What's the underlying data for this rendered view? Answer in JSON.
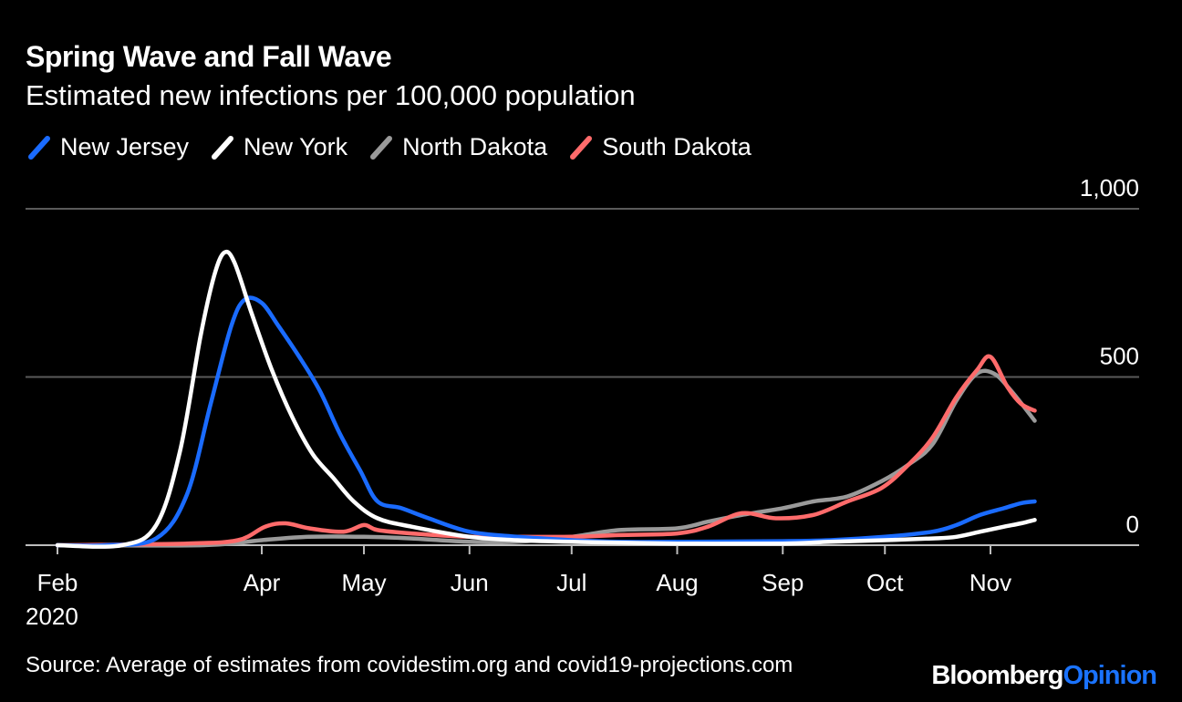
{
  "chart_data": {
    "type": "line",
    "title": "Spring Wave and Fall Wave",
    "subtitle": "Estimated new infections per 100,000 population",
    "ylim": [
      0,
      1000
    ],
    "yticks": [
      0,
      500,
      1000
    ],
    "ytick_labels": [
      "0",
      "500",
      "1,000"
    ],
    "xticks": [
      {
        "date": "2020-02-01",
        "label": "Feb"
      },
      {
        "date": "2020-04-01",
        "label": "Apr"
      },
      {
        "date": "2020-05-01",
        "label": "May"
      },
      {
        "date": "2020-06-01",
        "label": "Jun"
      },
      {
        "date": "2020-07-01",
        "label": "Jul"
      },
      {
        "date": "2020-08-01",
        "label": "Aug"
      },
      {
        "date": "2020-09-01",
        "label": "Sep"
      },
      {
        "date": "2020-10-01",
        "label": "Oct"
      },
      {
        "date": "2020-11-01",
        "label": "Nov"
      }
    ],
    "year_label": "2020",
    "grid": true,
    "legend_position": "top-left",
    "series": [
      {
        "name": "New Jersey",
        "color": "#1a6bff",
        "points": [
          [
            "2020-02-01",
            0
          ],
          [
            "2020-02-15",
            0
          ],
          [
            "2020-03-01",
            20
          ],
          [
            "2020-03-10",
            150
          ],
          [
            "2020-03-17",
            420
          ],
          [
            "2020-03-23",
            650
          ],
          [
            "2020-03-27",
            730
          ],
          [
            "2020-04-01",
            720
          ],
          [
            "2020-04-06",
            650
          ],
          [
            "2020-04-12",
            560
          ],
          [
            "2020-04-18",
            460
          ],
          [
            "2020-04-24",
            330
          ],
          [
            "2020-04-30",
            220
          ],
          [
            "2020-05-05",
            130
          ],
          [
            "2020-05-12",
            110
          ],
          [
            "2020-05-20",
            80
          ],
          [
            "2020-06-01",
            40
          ],
          [
            "2020-06-15",
            25
          ],
          [
            "2020-07-01",
            15
          ],
          [
            "2020-07-15",
            10
          ],
          [
            "2020-08-01",
            10
          ],
          [
            "2020-09-01",
            12
          ],
          [
            "2020-09-15",
            15
          ],
          [
            "2020-10-01",
            25
          ],
          [
            "2020-10-15",
            40
          ],
          [
            "2020-10-22",
            60
          ],
          [
            "2020-10-29",
            90
          ],
          [
            "2020-11-05",
            110
          ],
          [
            "2020-11-10",
            125
          ],
          [
            "2020-11-14",
            130
          ]
        ]
      },
      {
        "name": "New York",
        "color": "#ffffff",
        "points": [
          [
            "2020-02-01",
            0
          ],
          [
            "2020-02-20",
            0
          ],
          [
            "2020-03-01",
            60
          ],
          [
            "2020-03-08",
            280
          ],
          [
            "2020-03-14",
            620
          ],
          [
            "2020-03-18",
            800
          ],
          [
            "2020-03-21",
            870
          ],
          [
            "2020-03-24",
            840
          ],
          [
            "2020-03-29",
            690
          ],
          [
            "2020-04-04",
            520
          ],
          [
            "2020-04-10",
            380
          ],
          [
            "2020-04-16",
            270
          ],
          [
            "2020-04-22",
            200
          ],
          [
            "2020-04-28",
            130
          ],
          [
            "2020-05-05",
            80
          ],
          [
            "2020-05-15",
            55
          ],
          [
            "2020-06-01",
            25
          ],
          [
            "2020-06-15",
            15
          ],
          [
            "2020-07-01",
            10
          ],
          [
            "2020-08-01",
            5
          ],
          [
            "2020-09-01",
            5
          ],
          [
            "2020-09-15",
            10
          ],
          [
            "2020-10-01",
            15
          ],
          [
            "2020-10-15",
            20
          ],
          [
            "2020-10-22",
            25
          ],
          [
            "2020-10-29",
            40
          ],
          [
            "2020-11-05",
            55
          ],
          [
            "2020-11-10",
            65
          ],
          [
            "2020-11-14",
            75
          ]
        ]
      },
      {
        "name": "North Dakota",
        "color": "#9a9a9a",
        "points": [
          [
            "2020-02-01",
            0
          ],
          [
            "2020-03-15",
            0
          ],
          [
            "2020-04-01",
            15
          ],
          [
            "2020-04-15",
            25
          ],
          [
            "2020-05-01",
            25
          ],
          [
            "2020-05-15",
            20
          ],
          [
            "2020-06-01",
            10
          ],
          [
            "2020-06-15",
            10
          ],
          [
            "2020-07-01",
            25
          ],
          [
            "2020-07-15",
            45
          ],
          [
            "2020-08-01",
            50
          ],
          [
            "2020-08-10",
            70
          ],
          [
            "2020-08-20",
            90
          ],
          [
            "2020-09-01",
            110
          ],
          [
            "2020-09-10",
            130
          ],
          [
            "2020-09-20",
            145
          ],
          [
            "2020-09-30",
            190
          ],
          [
            "2020-10-08",
            240
          ],
          [
            "2020-10-15",
            300
          ],
          [
            "2020-10-22",
            430
          ],
          [
            "2020-10-28",
            510
          ],
          [
            "2020-11-02",
            510
          ],
          [
            "2020-11-07",
            460
          ],
          [
            "2020-11-14",
            370
          ]
        ]
      },
      {
        "name": "South Dakota",
        "color": "#ff6b6b",
        "points": [
          [
            "2020-02-01",
            0
          ],
          [
            "2020-03-10",
            5
          ],
          [
            "2020-03-25",
            15
          ],
          [
            "2020-04-02",
            55
          ],
          [
            "2020-04-08",
            65
          ],
          [
            "2020-04-15",
            50
          ],
          [
            "2020-04-25",
            40
          ],
          [
            "2020-05-01",
            60
          ],
          [
            "2020-05-05",
            45
          ],
          [
            "2020-05-15",
            35
          ],
          [
            "2020-06-01",
            25
          ],
          [
            "2020-06-15",
            25
          ],
          [
            "2020-07-01",
            25
          ],
          [
            "2020-07-15",
            30
          ],
          [
            "2020-08-01",
            35
          ],
          [
            "2020-08-10",
            55
          ],
          [
            "2020-08-20",
            95
          ],
          [
            "2020-08-30",
            80
          ],
          [
            "2020-09-10",
            90
          ],
          [
            "2020-09-20",
            130
          ],
          [
            "2020-09-30",
            170
          ],
          [
            "2020-10-08",
            240
          ],
          [
            "2020-10-15",
            320
          ],
          [
            "2020-10-22",
            440
          ],
          [
            "2020-10-28",
            520
          ],
          [
            "2020-11-01",
            560
          ],
          [
            "2020-11-06",
            470
          ],
          [
            "2020-11-10",
            420
          ],
          [
            "2020-11-14",
            400
          ]
        ]
      }
    ]
  },
  "footer": {
    "source": "Source: Average of estimates from covidestim.org and covid19-projections.com",
    "brand_part1": "Bloomberg",
    "brand_part2": "Opinion"
  }
}
